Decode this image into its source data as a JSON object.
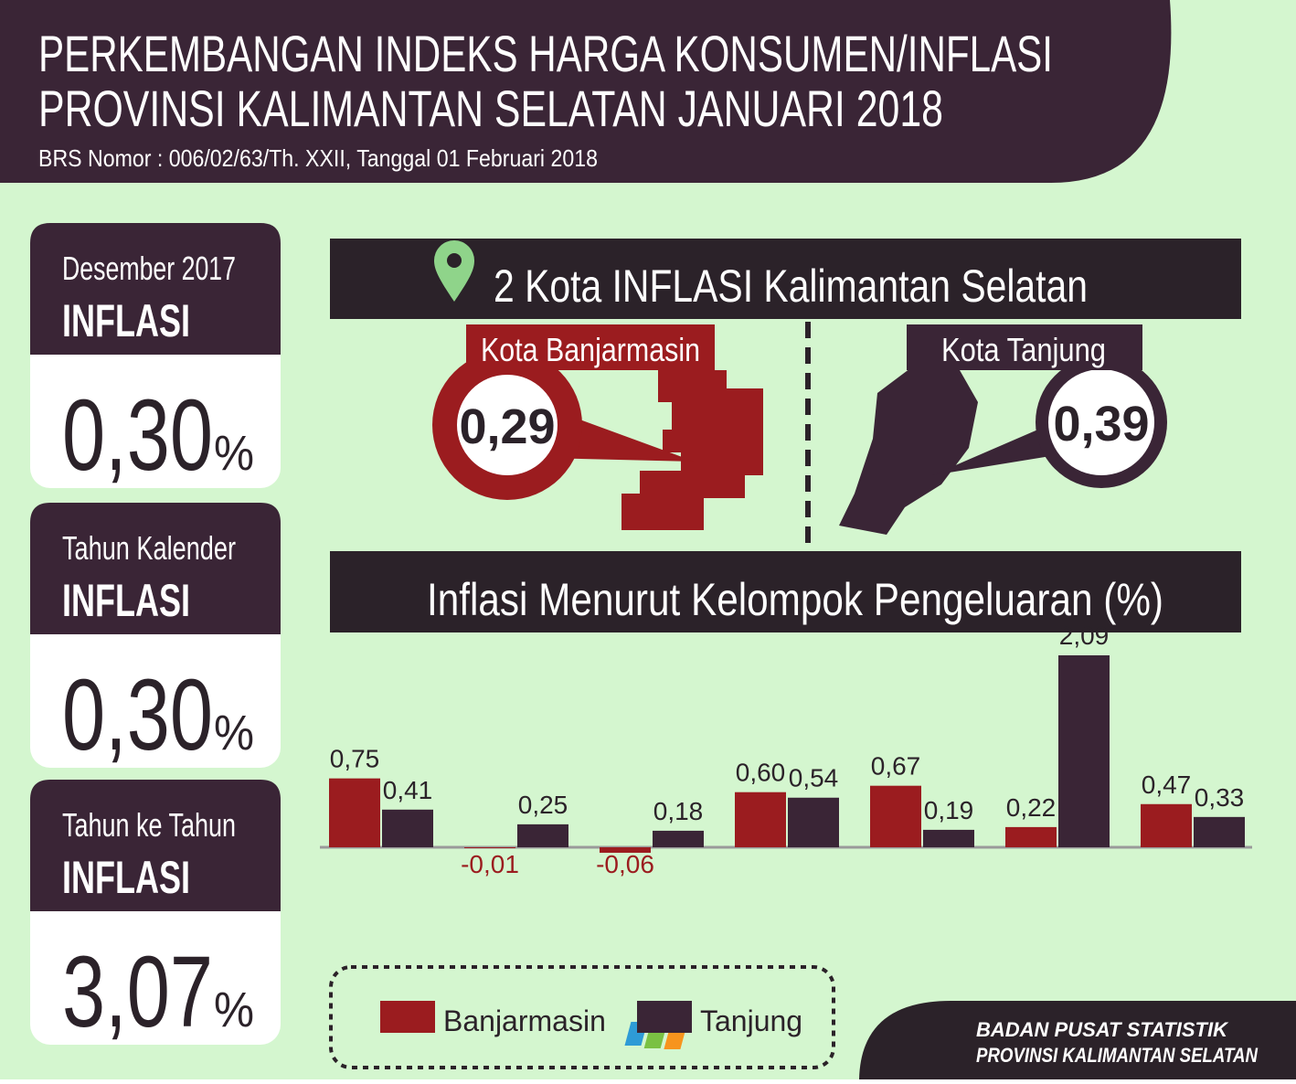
{
  "header": {
    "title_lines": [
      "PERKEMBANGAN INDEKS HARGA KONSUMEN/INFLASI",
      "PROVINSI KALIMANTAN SELATAN JANUARI 2018"
    ],
    "subtitle": "BRS Nomor : 006/02/63/Th. XXII, Tanggal 01 Februari 2018"
  },
  "cards": [
    {
      "period": "Desember 2017",
      "label": "INFLASI",
      "value": "0,30",
      "unit": "%"
    },
    {
      "period": "Tahun Kalender",
      "label": "INFLASI",
      "value": "0,30",
      "unit": "%"
    },
    {
      "period": "Tahun ke Tahun",
      "label": "INFLASI",
      "value": "3,07",
      "unit": "%"
    }
  ],
  "cities": {
    "title": "2 Kota INFLASI Kalimantan Selatan",
    "items": [
      {
        "name": "Kota Banjarmasin",
        "value": "0,29"
      },
      {
        "name": "Kota Tanjung",
        "value": "0,39"
      }
    ]
  },
  "chart_data": {
    "type": "bar",
    "title": "Inflasi Menurut Kelompok Pengeluaran (%)",
    "categories": [
      null,
      null,
      null,
      null,
      null,
      null,
      null
    ],
    "series": [
      {
        "name": "Banjarmasin",
        "color": "#9b1c1f",
        "values": [
          0.75,
          -0.01,
          -0.06,
          0.6,
          0.67,
          0.22,
          0.47
        ],
        "value_labels": [
          "0,75",
          "-0,01",
          "-0,06",
          "0,60",
          "0,67",
          "0,22",
          "0,47"
        ]
      },
      {
        "name": "Tanjung",
        "color": "#3a2536",
        "values": [
          0.41,
          0.25,
          0.18,
          0.54,
          0.19,
          2.09,
          0.33
        ],
        "value_labels": [
          "0,41",
          "0,25",
          "0,18",
          "0,54",
          "0,19",
          "2,09",
          "0,33"
        ]
      }
    ]
  },
  "footer": {
    "lines": [
      "BADAN PUSAT STATISTIK",
      "PROVINSI KALIMANTAN SELATAN"
    ]
  }
}
